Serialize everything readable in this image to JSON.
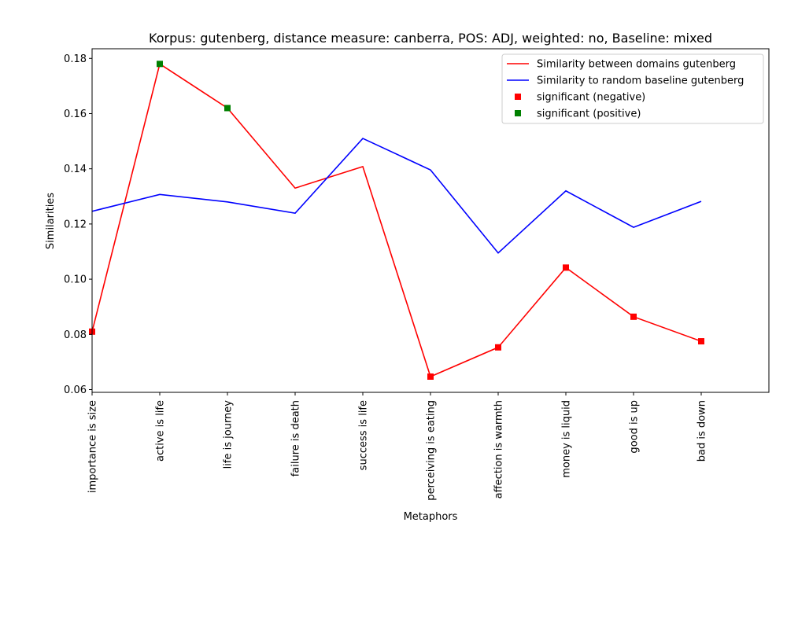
{
  "chart_data": {
    "type": "line",
    "title": "Korpus: gutenberg, distance measure: canberra, POS: ADJ, weighted: no, Baseline: mixed",
    "xlabel": "Metaphors",
    "ylabel": "Similarities",
    "categories": [
      "importance is size",
      "active is life",
      "life is journey",
      "failure is death",
      "success is life",
      "perceiving is eating",
      "affection is warmth",
      "money is liquid",
      "good is up",
      "bad is down"
    ],
    "ylim": [
      0.059,
      0.1835
    ],
    "yticks": [
      "0.06",
      "0.08",
      "0.10",
      "0.12",
      "0.14",
      "0.16",
      "0.18"
    ],
    "grid": false,
    "legend_position": "top-right",
    "series": [
      {
        "name": "Similarity between domains gutenberg",
        "color": "#ff0000",
        "values": [
          0.081,
          0.178,
          0.162,
          0.133,
          0.1408,
          0.0647,
          0.0753,
          0.1042,
          0.0864,
          0.0775
        ]
      },
      {
        "name": "Similarity to random baseline gutenberg",
        "color": "#0000ff",
        "values": [
          0.1246,
          0.1307,
          0.128,
          0.1239,
          0.151,
          0.1396,
          0.1095,
          0.132,
          0.1188,
          0.1282
        ]
      }
    ],
    "markers": [
      {
        "name": "significant (negative)",
        "color": "#ff0000",
        "indices": [
          0,
          5,
          6,
          7,
          8,
          9
        ]
      },
      {
        "name": "significant (positive)",
        "color": "#008000",
        "indices": [
          1,
          2
        ]
      }
    ]
  }
}
